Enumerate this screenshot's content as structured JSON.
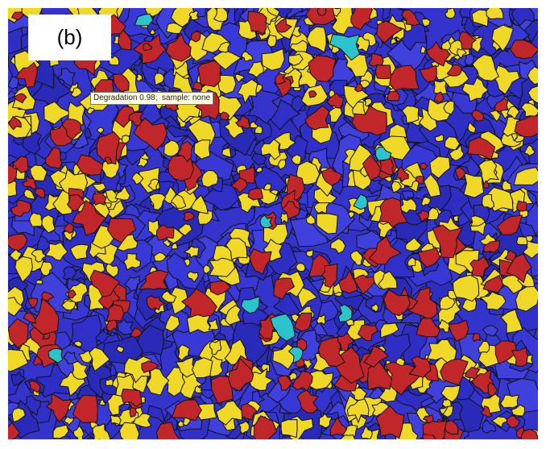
{
  "panel_label": "(b)",
  "tooltip": "Degradation 0.98;  sample: none"
}
